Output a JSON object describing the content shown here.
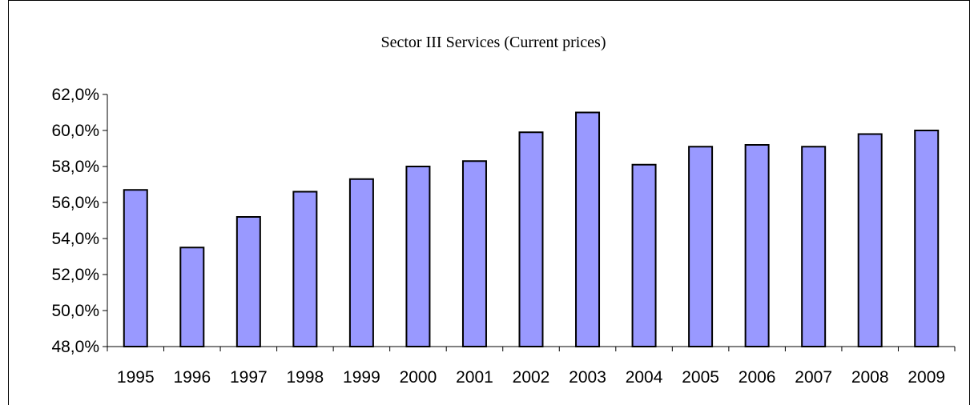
{
  "chart_data": {
    "type": "bar",
    "title": "Sector III Services (Current prices)",
    "xlabel": "",
    "ylabel": "",
    "categories": [
      "1995",
      "1996",
      "1997",
      "1998",
      "1999",
      "2000",
      "2001",
      "2002",
      "2003",
      "2004",
      "2005",
      "2006",
      "2007",
      "2008",
      "2009"
    ],
    "values": [
      56.7,
      53.5,
      55.2,
      56.6,
      57.3,
      58.0,
      58.3,
      59.9,
      61.0,
      58.1,
      59.1,
      59.2,
      59.1,
      59.8,
      60.0
    ],
    "ylim": [
      48,
      62
    ],
    "yticks": [
      48,
      50,
      52,
      54,
      56,
      58,
      60,
      62
    ],
    "ytick_labels": [
      "48,0%",
      "50,0%",
      "52,0%",
      "54,0%",
      "56,0%",
      "58,0%",
      "60,0%",
      "62,0%"
    ],
    "grid": false,
    "legend": "none",
    "colors": {
      "bar_fill": "#9999ff",
      "bar_stroke": "#000000",
      "axis": "#000000"
    }
  }
}
